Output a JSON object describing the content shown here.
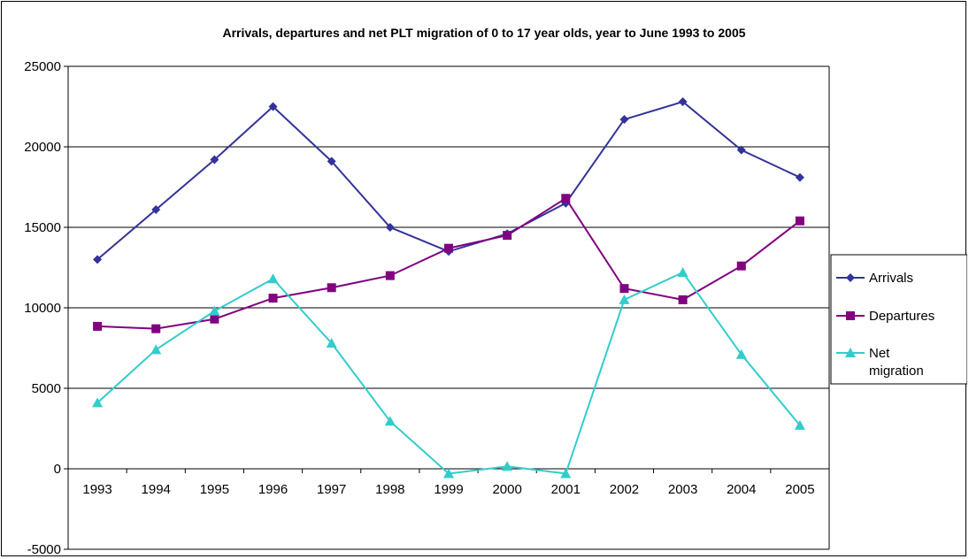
{
  "chart_data": {
    "type": "line",
    "title": "Arrivals, departures and net PLT migration of 0 to 17 year olds, year to June 1993 to 2005",
    "categories": [
      "1993",
      "1994",
      "1995",
      "1996",
      "1997",
      "1998",
      "1999",
      "2000",
      "2001",
      "2002",
      "2003",
      "2004",
      "2005"
    ],
    "ylim": [
      -5000,
      25000
    ],
    "yticks": [
      "25000",
      "20000",
      "15000",
      "10000",
      "5000",
      "0",
      "-5000"
    ],
    "grid": true,
    "legend_position": "right",
    "series": [
      {
        "name": "Arrivals",
        "color": "#333399",
        "marker": "diamond",
        "values": [
          13000,
          16100,
          19200,
          22500,
          19100,
          15000,
          13500,
          14600,
          16500,
          21700,
          22800,
          19800,
          18100
        ]
      },
      {
        "name": "Departures",
        "color": "#800080",
        "marker": "square",
        "values": [
          8850,
          8700,
          9300,
          10600,
          11250,
          12000,
          13700,
          14500,
          16800,
          11200,
          10500,
          12600,
          15400
        ]
      },
      {
        "name": "Net migration",
        "legend_lines": [
          "Net",
          "migration"
        ],
        "color": "#33CCCC",
        "marker": "triangle",
        "values": [
          4100,
          7400,
          9800,
          11800,
          7800,
          2950,
          -300,
          150,
          -300,
          10500,
          12200,
          7100,
          2700
        ]
      }
    ]
  }
}
